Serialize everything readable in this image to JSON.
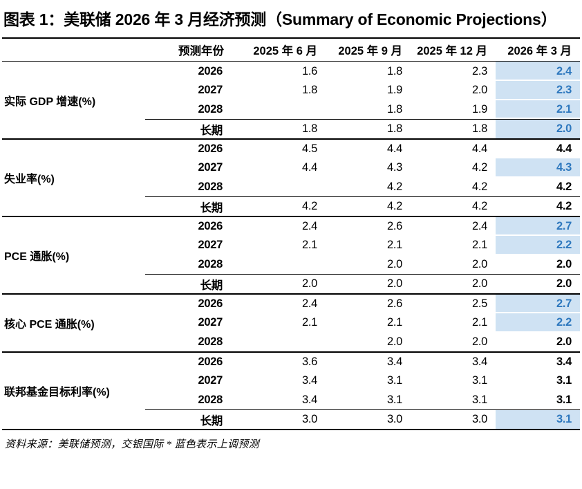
{
  "title": "图表 1：美联储 2026 年 3 月经济预测（Summary of Economic Projections）",
  "footer": "资料来源：美联储预测，交银国际 * 蓝色表示上调预测",
  "colors": {
    "highlight_bg": "#cfe2f3",
    "highlight_text": "#2e78be",
    "border": "#000000"
  },
  "table": {
    "columns": [
      "预测年份",
      "2025 年 6 月",
      "2025 年 9 月",
      "2025 年 12 月",
      "2026 年 3 月"
    ],
    "highlight_note": "蓝色表示上调预测",
    "sections": [
      {
        "label": "实际 GDP 增速(%)",
        "rows": [
          {
            "year": "2026",
            "values": [
              "1.6",
              "1.8",
              "2.3",
              "2.4"
            ],
            "highlight_last": true,
            "longrun": false
          },
          {
            "year": "2027",
            "values": [
              "1.8",
              "1.9",
              "2.0",
              "2.3"
            ],
            "highlight_last": true,
            "longrun": false
          },
          {
            "year": "2028",
            "values": [
              "",
              "1.8",
              "1.9",
              "2.1"
            ],
            "highlight_last": true,
            "longrun": false
          },
          {
            "year": "长期",
            "values": [
              "1.8",
              "1.8",
              "1.8",
              "2.0"
            ],
            "highlight_last": true,
            "longrun": true
          }
        ]
      },
      {
        "label": "失业率(%)",
        "rows": [
          {
            "year": "2026",
            "values": [
              "4.5",
              "4.4",
              "4.4",
              "4.4"
            ],
            "highlight_last": false,
            "longrun": false
          },
          {
            "year": "2027",
            "values": [
              "4.4",
              "4.3",
              "4.2",
              "4.3"
            ],
            "highlight_last": true,
            "longrun": false
          },
          {
            "year": "2028",
            "values": [
              "",
              "4.2",
              "4.2",
              "4.2"
            ],
            "highlight_last": false,
            "longrun": false
          },
          {
            "year": "长期",
            "values": [
              "4.2",
              "4.2",
              "4.2",
              "4.2"
            ],
            "highlight_last": false,
            "longrun": true
          }
        ]
      },
      {
        "label": "PCE 通胀(%)",
        "rows": [
          {
            "year": "2026",
            "values": [
              "2.4",
              "2.6",
              "2.4",
              "2.7"
            ],
            "highlight_last": true,
            "longrun": false
          },
          {
            "year": "2027",
            "values": [
              "2.1",
              "2.1",
              "2.1",
              "2.2"
            ],
            "highlight_last": true,
            "longrun": false
          },
          {
            "year": "2028",
            "values": [
              "",
              "2.0",
              "2.0",
              "2.0"
            ],
            "highlight_last": false,
            "longrun": false
          },
          {
            "year": "长期",
            "values": [
              "2.0",
              "2.0",
              "2.0",
              "2.0"
            ],
            "highlight_last": false,
            "longrun": true
          }
        ]
      },
      {
        "label": "核心 PCE 通胀(%)",
        "rows": [
          {
            "year": "2026",
            "values": [
              "2.4",
              "2.6",
              "2.5",
              "2.7"
            ],
            "highlight_last": true,
            "longrun": false
          },
          {
            "year": "2027",
            "values": [
              "2.1",
              "2.1",
              "2.1",
              "2.2"
            ],
            "highlight_last": true,
            "longrun": false
          },
          {
            "year": "2028",
            "values": [
              "",
              "2.0",
              "2.0",
              "2.0"
            ],
            "highlight_last": false,
            "longrun": false
          }
        ]
      },
      {
        "label": "联邦基金目标利率(%)",
        "rows": [
          {
            "year": "2026",
            "values": [
              "3.6",
              "3.4",
              "3.4",
              "3.4"
            ],
            "highlight_last": false,
            "longrun": false
          },
          {
            "year": "2027",
            "values": [
              "3.4",
              "3.1",
              "3.1",
              "3.1"
            ],
            "highlight_last": false,
            "longrun": false
          },
          {
            "year": "2028",
            "values": [
              "3.4",
              "3.1",
              "3.1",
              "3.1"
            ],
            "highlight_last": false,
            "longrun": false
          },
          {
            "year": "长期",
            "values": [
              "3.0",
              "3.0",
              "3.0",
              "3.1"
            ],
            "highlight_last": true,
            "longrun": true
          }
        ]
      }
    ]
  }
}
